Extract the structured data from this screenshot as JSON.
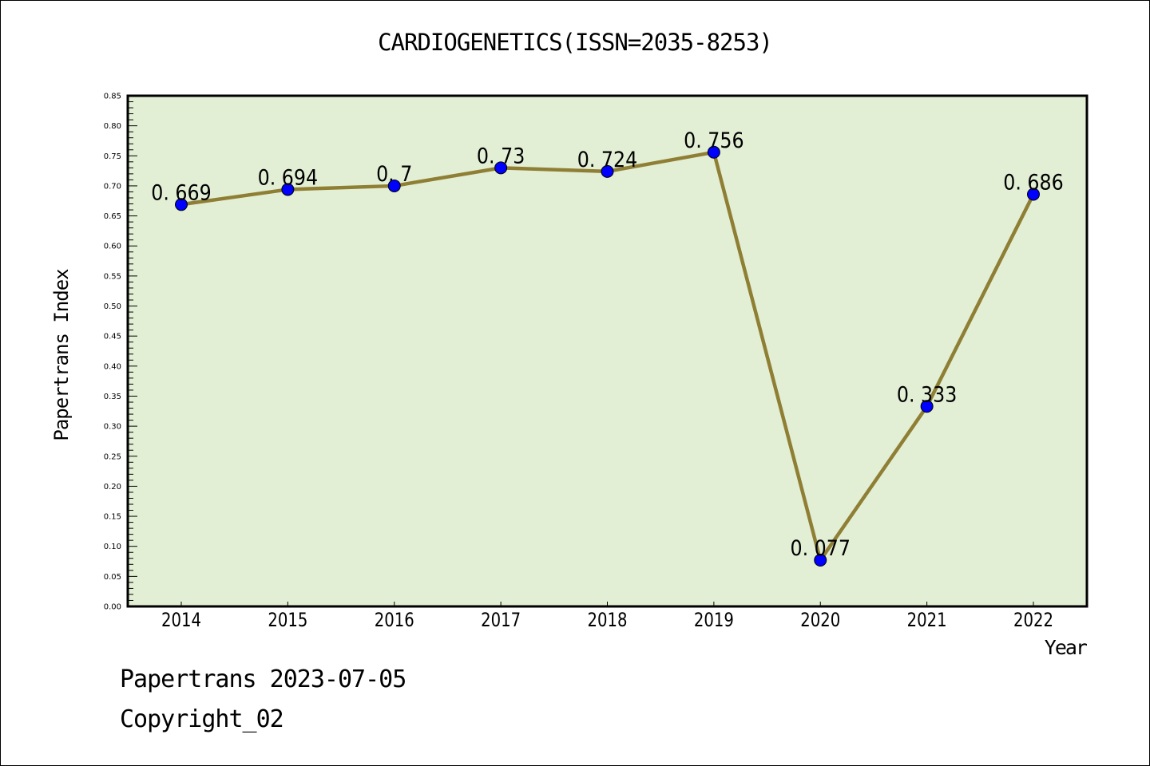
{
  "chart_data": {
    "type": "line",
    "title": "CARDIOGENETICS(ISSN=2035-8253)",
    "xlabel": "Year",
    "ylabel": "Papertrans Index",
    "categories": [
      "2014",
      "2015",
      "2016",
      "2017",
      "2018",
      "2019",
      "2020",
      "2021",
      "2022"
    ],
    "series": [
      {
        "name": "Papertrans Index",
        "values": [
          0.669,
          0.694,
          0.7,
          0.73,
          0.724,
          0.756,
          0.077,
          0.333,
          0.686
        ],
        "labels": [
          "0.669",
          "0.694",
          "0.7",
          "0.73",
          "0.724",
          "0.756",
          "0.077",
          "0.333",
          "0.686"
        ],
        "line_color": "#8f7f35",
        "marker_color": "#0000ff"
      }
    ],
    "ylim": [
      0,
      0.85
    ],
    "yticks": [
      "0.00",
      "0.05",
      "0.10",
      "0.15",
      "0.20",
      "0.25",
      "0.30",
      "0.35",
      "0.40",
      "0.45",
      "0.50",
      "0.55",
      "0.60",
      "0.65",
      "0.70",
      "0.75",
      "0.80",
      "0.85"
    ],
    "grid": false,
    "plot_background": "#e2efd5",
    "legend": "none"
  },
  "footer": {
    "source": "Papertrans 2023-07-05",
    "copyright": "Copyright_02"
  }
}
